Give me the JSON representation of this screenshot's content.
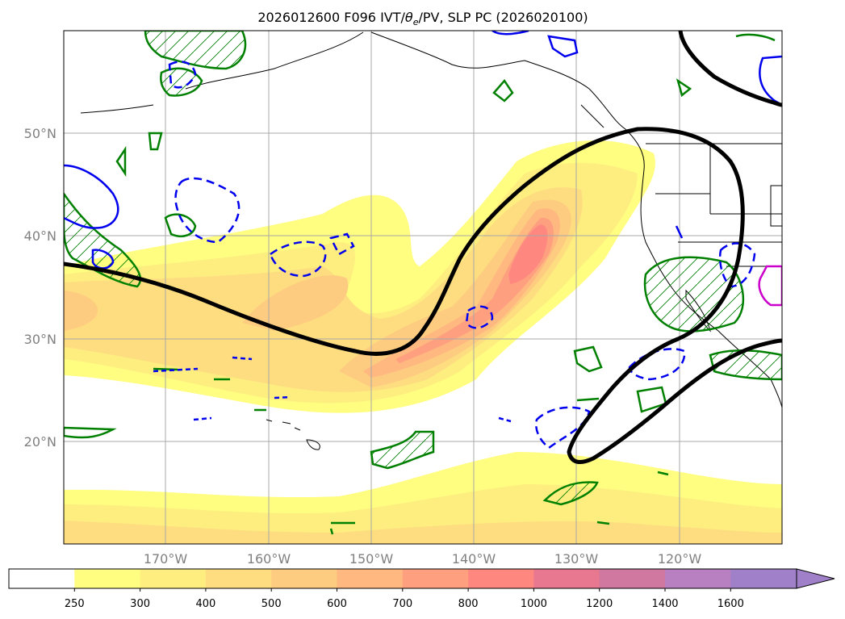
{
  "title": {
    "prefix": "2026012600 F096 IVT/",
    "theta": "θ",
    "theta_sub": "e",
    "suffix": "/PV, SLP PC (2026020100)"
  },
  "map": {
    "lon_range_deg": [
      -180,
      -110
    ],
    "lat_range_deg": [
      10,
      60
    ],
    "latitude_labels": [
      "50°N",
      "40°N",
      "30°N",
      "20°N"
    ],
    "longitude_labels": [
      "170°W",
      "160°W",
      "150°W",
      "140°W",
      "130°W",
      "120°W"
    ]
  },
  "colorbar": {
    "levels": [
      "250",
      "300",
      "400",
      "500",
      "600",
      "700",
      "800",
      "1000",
      "1200",
      "1400",
      "1600"
    ],
    "colors": [
      "#ffffff",
      "#fffe80",
      "#feee80",
      "#fddd80",
      "#fecc80",
      "#feb880",
      "#fea080",
      "#fe8880",
      "#e87890",
      "#d078a0",
      "#b880c0",
      "#a080c8"
    ]
  },
  "colors": {
    "slp_contour": "#000000",
    "pv_dashed": "#0000ee",
    "pv_solid": "#0000ff",
    "theta_e": "#008000",
    "max_contour": "#cc00cc"
  }
}
